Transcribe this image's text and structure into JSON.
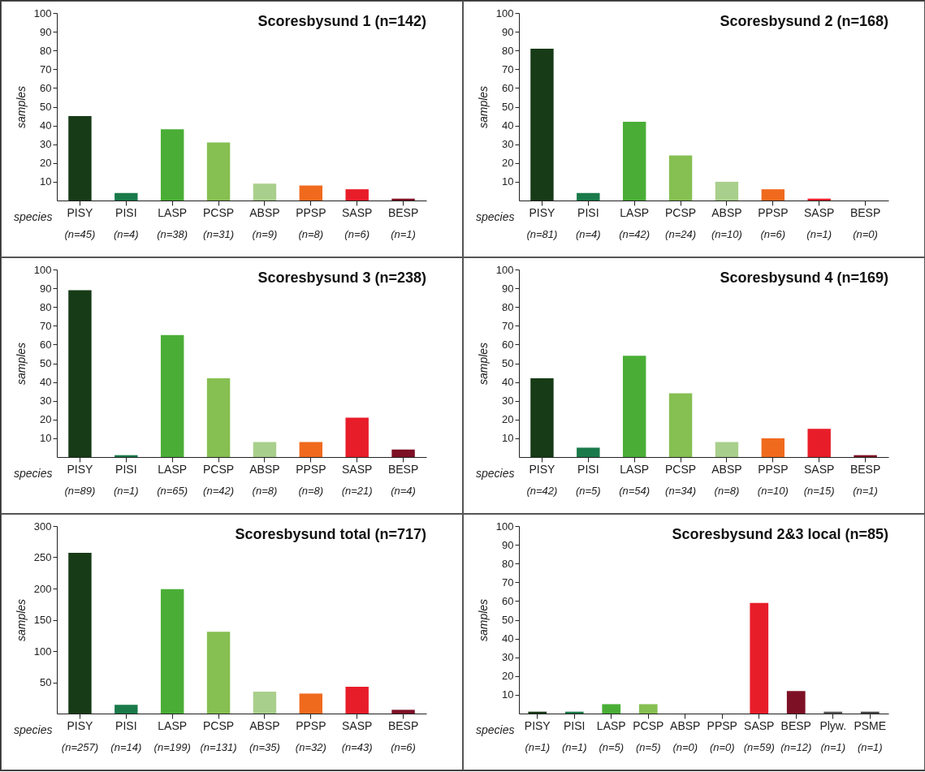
{
  "chart_data": [
    {
      "type": "bar",
      "title": "Scoresbysund 1 (n=142)",
      "xlabel": "species",
      "ylabel": "samples",
      "categories": [
        "PISY",
        "PISI",
        "LASP",
        "PCSP",
        "ABSP",
        "PPSP",
        "SASP",
        "BESP"
      ],
      "values": [
        45,
        4,
        38,
        31,
        9,
        8,
        6,
        1
      ],
      "value_labels": [
        "(n=45)",
        "(n=4)",
        "(n=38)",
        "(n=31)",
        "(n=9)",
        "(n=8)",
        "(n=6)",
        "(n=1)"
      ],
      "colors": [
        "#173b17",
        "#1a7a4a",
        "#4aae36",
        "#86bf52",
        "#a9cf8c",
        "#f06a1e",
        "#e81d2a",
        "#7d1025"
      ],
      "ylim": [
        0,
        100
      ],
      "yticks": [
        10,
        20,
        30,
        40,
        50,
        60,
        70,
        80,
        90,
        100
      ]
    },
    {
      "type": "bar",
      "title": "Scoresbysund 2 (n=168)",
      "xlabel": "species",
      "ylabel": "samples",
      "categories": [
        "PISY",
        "PISI",
        "LASP",
        "PCSP",
        "ABSP",
        "PPSP",
        "SASP",
        "BESP"
      ],
      "values": [
        81,
        4,
        42,
        24,
        10,
        6,
        1,
        0
      ],
      "value_labels": [
        "(n=81)",
        "(n=4)",
        "(n=42)",
        "(n=24)",
        "(n=10)",
        "(n=6)",
        "(n=1)",
        "(n=0)"
      ],
      "colors": [
        "#173b17",
        "#1a7a4a",
        "#4aae36",
        "#86bf52",
        "#a9cf8c",
        "#f06a1e",
        "#e81d2a",
        "#7d1025"
      ],
      "ylim": [
        0,
        100
      ],
      "yticks": [
        10,
        20,
        30,
        40,
        50,
        60,
        70,
        80,
        90,
        100
      ]
    },
    {
      "type": "bar",
      "title": "Scoresbysund 3 (n=238)",
      "xlabel": "species",
      "ylabel": "samples",
      "categories": [
        "PISY",
        "PISI",
        "LASP",
        "PCSP",
        "ABSP",
        "PPSP",
        "SASP",
        "BESP"
      ],
      "values": [
        89,
        1,
        65,
        42,
        8,
        8,
        21,
        4
      ],
      "value_labels": [
        "(n=89)",
        "(n=1)",
        "(n=65)",
        "(n=42)",
        "(n=8)",
        "(n=8)",
        "(n=21)",
        "(n=4)"
      ],
      "colors": [
        "#173b17",
        "#1a7a4a",
        "#4aae36",
        "#86bf52",
        "#a9cf8c",
        "#f06a1e",
        "#e81d2a",
        "#7d1025"
      ],
      "ylim": [
        0,
        100
      ],
      "yticks": [
        10,
        20,
        30,
        40,
        50,
        60,
        70,
        80,
        90,
        100
      ]
    },
    {
      "type": "bar",
      "title": "Scoresbysund 4 (n=169)",
      "xlabel": "species",
      "ylabel": "samples",
      "categories": [
        "PISY",
        "PISI",
        "LASP",
        "PCSP",
        "ABSP",
        "PPSP",
        "SASP",
        "BESP"
      ],
      "values": [
        42,
        5,
        54,
        34,
        8,
        10,
        15,
        1
      ],
      "value_labels": [
        "(n=42)",
        "(n=5)",
        "(n=54)",
        "(n=34)",
        "(n=8)",
        "(n=10)",
        "(n=15)",
        "(n=1)"
      ],
      "colors": [
        "#173b17",
        "#1a7a4a",
        "#4aae36",
        "#86bf52",
        "#a9cf8c",
        "#f06a1e",
        "#e81d2a",
        "#7d1025"
      ],
      "ylim": [
        0,
        100
      ],
      "yticks": [
        10,
        20,
        30,
        40,
        50,
        60,
        70,
        80,
        90,
        100
      ]
    },
    {
      "type": "bar",
      "title": "Scoresbysund total (n=717)",
      "xlabel": "species",
      "ylabel": "samples",
      "categories": [
        "PISY",
        "PISI",
        "LASP",
        "PCSP",
        "ABSP",
        "PPSP",
        "SASP",
        "BESP"
      ],
      "values": [
        257,
        14,
        199,
        131,
        35,
        32,
        43,
        6
      ],
      "value_labels": [
        "(n=257)",
        "(n=14)",
        "(n=199)",
        "(n=131)",
        "(n=35)",
        "(n=32)",
        "(n=43)",
        "(n=6)"
      ],
      "colors": [
        "#173b17",
        "#1a7a4a",
        "#4aae36",
        "#86bf52",
        "#a9cf8c",
        "#f06a1e",
        "#e81d2a",
        "#7d1025"
      ],
      "ylim": [
        0,
        300
      ],
      "yticks": [
        50,
        100,
        150,
        200,
        250,
        300
      ]
    },
    {
      "type": "bar",
      "title": "Scoresbysund 2&3  local (n=85)",
      "xlabel": "species",
      "ylabel": "samples",
      "categories": [
        "PISY",
        "PISI",
        "LASP",
        "PCSP",
        "ABSP",
        "PPSP",
        "SASP",
        "BESP",
        "Plyw.",
        "PSME"
      ],
      "values": [
        1,
        1,
        5,
        5,
        0,
        0,
        59,
        12,
        1,
        1
      ],
      "value_labels": [
        "(n=1)",
        "(n=1)",
        "(n=5)",
        "(n=5)",
        "(n=0)",
        "(n=0)",
        "(n=59)",
        "(n=12)",
        "(n=1)",
        "(n=1)"
      ],
      "colors": [
        "#173b17",
        "#1a7a4a",
        "#4aae36",
        "#86bf52",
        "#a9cf8c",
        "#f06a1e",
        "#e81d2a",
        "#7d1025",
        "#555555",
        "#444444"
      ],
      "ylim": [
        0,
        100
      ],
      "yticks": [
        10,
        20,
        30,
        40,
        50,
        60,
        70,
        80,
        90,
        100
      ]
    }
  ]
}
